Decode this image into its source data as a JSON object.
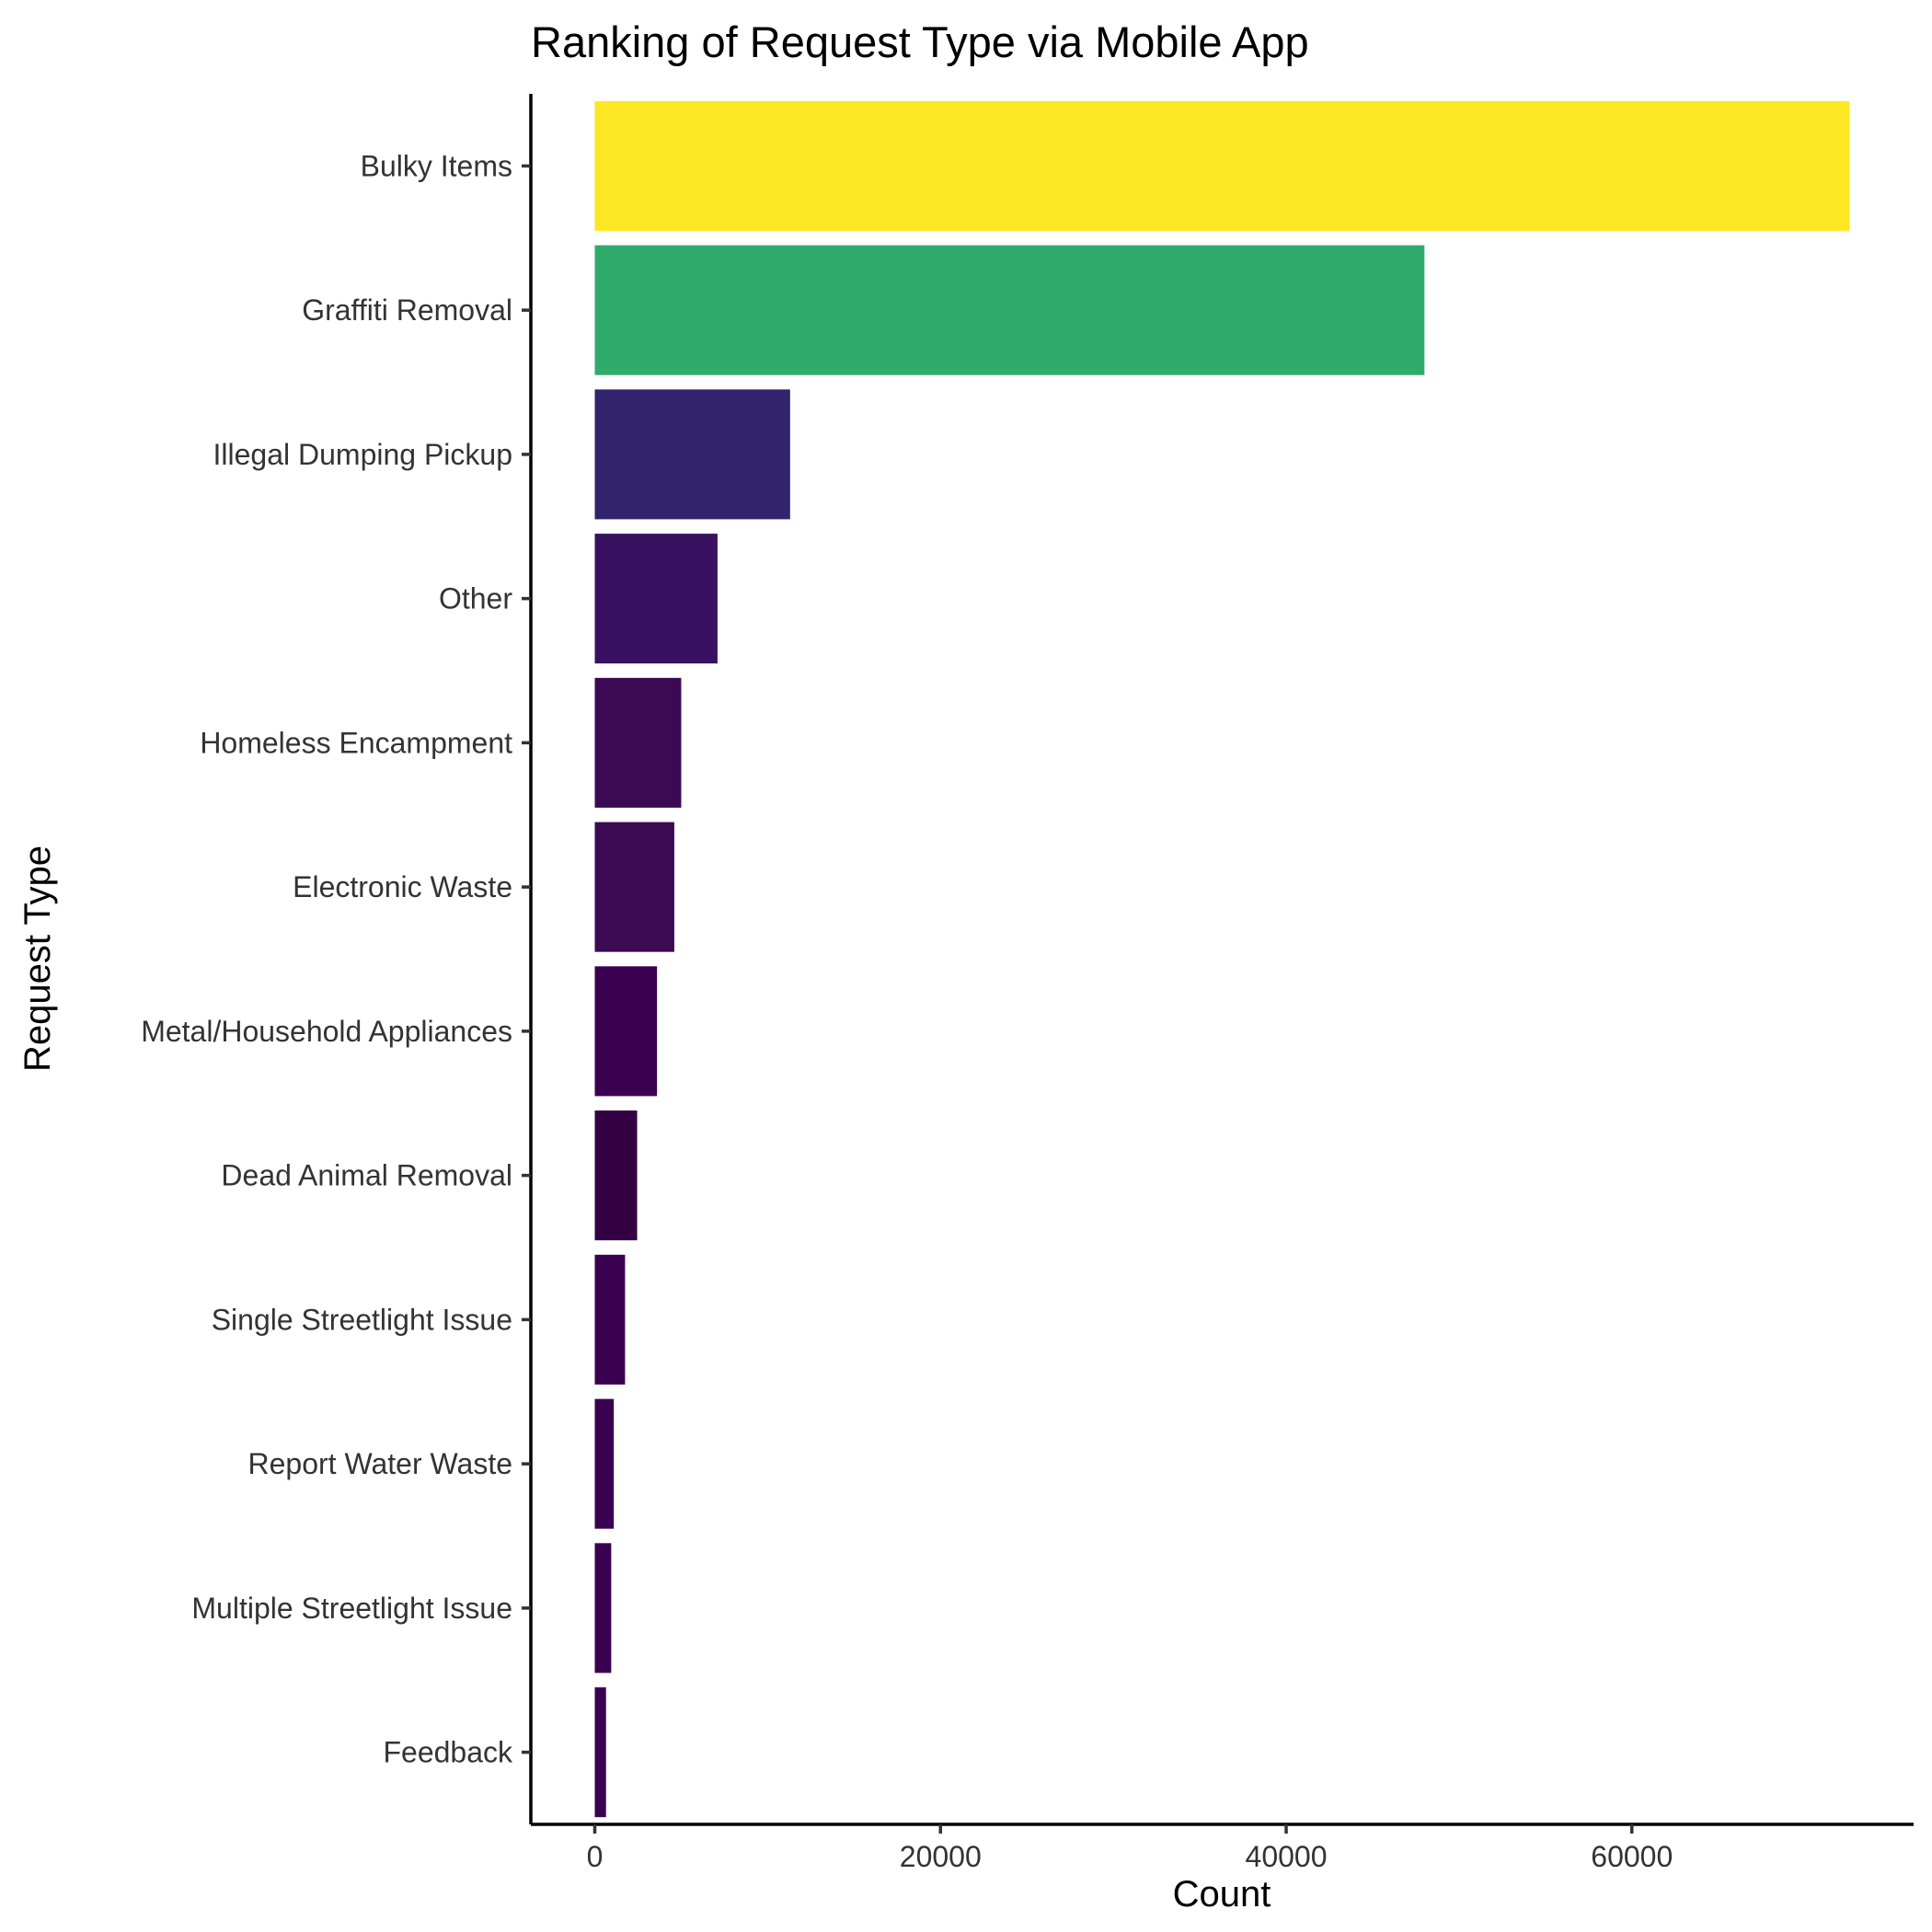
{
  "chart_data": {
    "type": "bar",
    "orientation": "horizontal",
    "title": "Ranking of Request Type via Mobile App",
    "xlabel": "Count",
    "ylabel": "Request Type",
    "xlim": [
      -3700,
      76300
    ],
    "xticks": [
      0,
      20000,
      40000,
      60000
    ],
    "xtick_labels": [
      "0",
      "20000",
      "40000",
      "60000"
    ],
    "grid": false,
    "legend": "none",
    "categories": [
      "Bulky Items",
      "Graffiti Removal",
      "Illegal Dumping Pickup",
      "Other",
      "Homeless Encampment",
      "Electronic Waste",
      "Metal/Household Appliances",
      "Dead Animal Removal",
      "Single Streetlight Issue",
      "Report Water Waste",
      "Multiple Streetlight Issue",
      "Feedback"
    ],
    "values": [
      72600,
      48000,
      11300,
      7100,
      5000,
      4600,
      3600,
      2450,
      1750,
      1100,
      950,
      650
    ],
    "colors": [
      "#FDE725",
      "#2FAC6B",
      "#32236C",
      "#3A1160",
      "#3B0A53",
      "#3B0A53",
      "#3A0050",
      "#330044",
      "#3A0050",
      "#3A0050",
      "#3A0050",
      "#3A0050"
    ]
  }
}
